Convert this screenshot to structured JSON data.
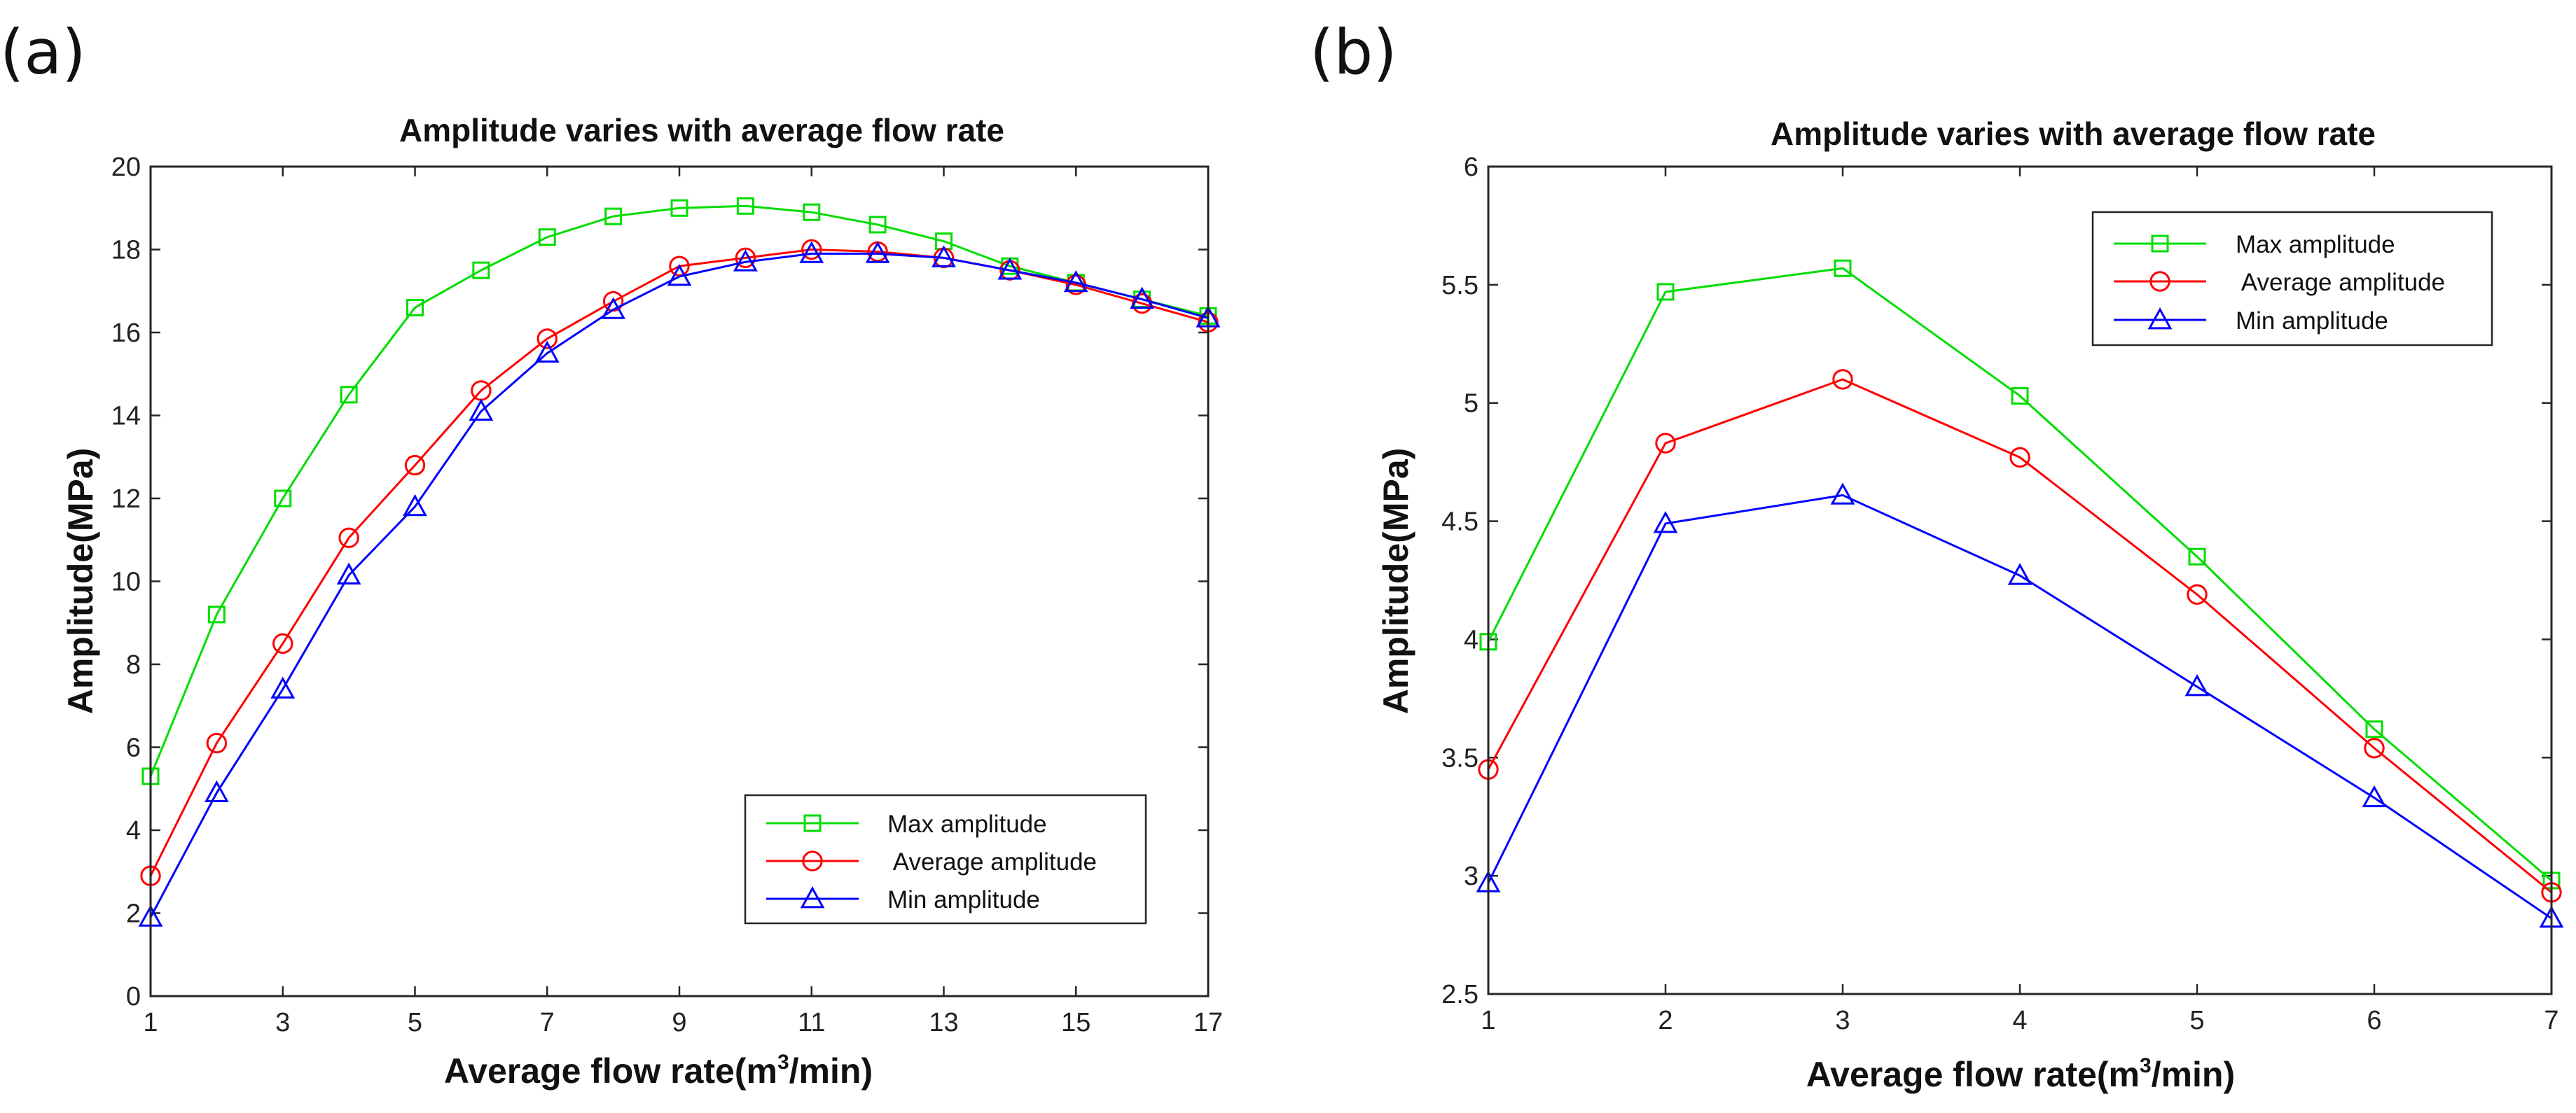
{
  "chart_data": [
    {
      "panel": "(a)",
      "type": "line",
      "title": "Amplitude varies with average flow rate",
      "xlabel_main": "Average flow rate(m",
      "xlabel_sup": "3",
      "xlabel_tail": "/min)",
      "ylabel": "Amplitude(MPa)",
      "xlim": [
        1,
        17
      ],
      "ylim": [
        0,
        20
      ],
      "xticks": [
        1,
        3,
        5,
        7,
        9,
        11,
        13,
        15,
        17
      ],
      "yticks": [
        0,
        2,
        4,
        6,
        8,
        10,
        12,
        14,
        16,
        18,
        20
      ],
      "legend": "bottom-right",
      "x": [
        1,
        2,
        3,
        4,
        5,
        6,
        7,
        8,
        9,
        10,
        11,
        12,
        13,
        14,
        15,
        16,
        17
      ],
      "series": [
        {
          "name": "Max amplitude",
          "color": "#00dd00",
          "marker": "square",
          "values": [
            5.3,
            9.2,
            12.0,
            14.5,
            16.6,
            17.5,
            18.3,
            18.8,
            19.0,
            19.05,
            18.9,
            18.6,
            18.2,
            17.6,
            17.2,
            16.8,
            16.4
          ]
        },
        {
          "name": " Average amplitude",
          "color": "#ff0000",
          "marker": "circle",
          "values": [
            2.9,
            6.1,
            8.5,
            11.05,
            12.8,
            14.6,
            15.85,
            16.75,
            17.6,
            17.8,
            18.0,
            17.95,
            17.8,
            17.5,
            17.15,
            16.7,
            16.25
          ]
        },
        {
          "name": "Min amplitude",
          "color": "#0000ff",
          "marker": "triangle",
          "values": [
            1.9,
            4.9,
            7.4,
            10.15,
            11.8,
            14.1,
            15.5,
            16.55,
            17.35,
            17.7,
            17.9,
            17.9,
            17.8,
            17.5,
            17.2,
            16.8,
            16.35
          ]
        }
      ]
    },
    {
      "panel": "(b)",
      "type": "line",
      "title": "Amplitude varies with average flow rate",
      "xlabel_main": "Average flow rate(m",
      "xlabel_sup": "3",
      "xlabel_tail": "/min)",
      "ylabel": "Amplitude(MPa)",
      "xlim": [
        1,
        7
      ],
      "ylim": [
        2.5,
        6
      ],
      "xticks": [
        1,
        2,
        3,
        4,
        5,
        6,
        7
      ],
      "yticks": [
        2.5,
        3,
        3.5,
        4,
        4.5,
        5,
        5.5,
        6
      ],
      "legend": "top-right",
      "x": [
        1,
        2,
        3,
        4,
        5,
        6,
        7
      ],
      "series": [
        {
          "name": "Max amplitude",
          "color": "#00dd00",
          "marker": "square",
          "values": [
            3.99,
            5.47,
            5.57,
            5.03,
            4.35,
            3.62,
            2.98
          ]
        },
        {
          "name": " Average amplitude",
          "color": "#ff0000",
          "marker": "circle",
          "values": [
            3.45,
            4.83,
            5.1,
            4.77,
            4.19,
            3.54,
            2.93
          ]
        },
        {
          "name": "Min amplitude",
          "color": "#0000ff",
          "marker": "triangle",
          "values": [
            2.97,
            4.49,
            4.61,
            4.27,
            3.8,
            3.33,
            2.82
          ]
        }
      ]
    }
  ]
}
